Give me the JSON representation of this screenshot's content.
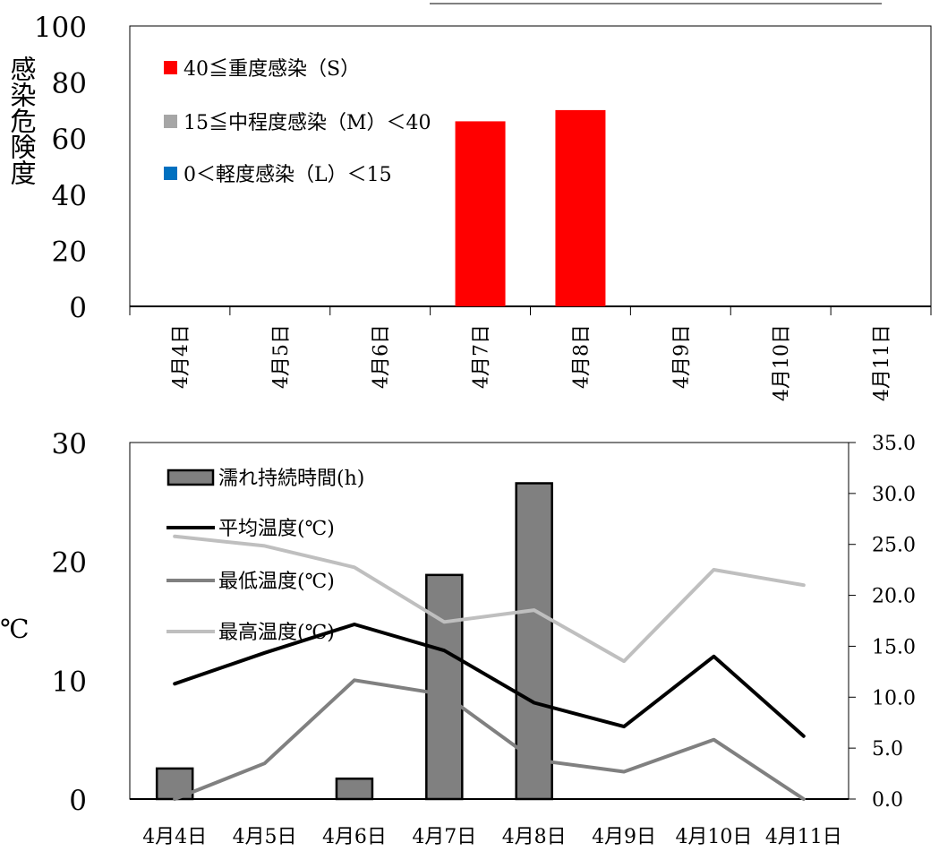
{
  "chart_data": [
    {
      "type": "bar",
      "title": "",
      "ylabel": "感染危険度",
      "ylim": [
        0,
        100
      ],
      "yticks": [
        "0",
        "20",
        "40",
        "60",
        "80",
        "100"
      ],
      "categories": [
        "4月4日",
        "4月5日",
        "4月6日",
        "4月7日",
        "4月8日",
        "4月9日",
        "4月10日",
        "4月11日"
      ],
      "series": [
        {
          "name": "40≦重度感染（S）",
          "color": "#ff0000",
          "values": [
            0,
            0,
            0,
            66,
            70,
            0,
            0,
            0
          ]
        },
        {
          "name": "15≦中程度感染（M）＜40",
          "color": "#a6a6a6",
          "values": [
            0,
            0,
            0,
            0,
            0,
            0,
            0,
            0
          ]
        },
        {
          "name": "0＜軽度感染（L）＜15",
          "color": "#0070c0",
          "values": [
            0,
            0,
            0,
            0,
            0,
            0,
            0,
            0
          ]
        }
      ],
      "legend": "top-left",
      "grid": false
    },
    {
      "type": "bar+line",
      "title": "",
      "ylabel": "℃",
      "ylim": [
        0,
        30
      ],
      "yticks": [
        "0",
        "10",
        "20",
        "30"
      ],
      "y2lim": [
        0,
        35
      ],
      "y2ticks": [
        "0.0",
        "5.0",
        "10.0",
        "15.0",
        "20.0",
        "25.0",
        "30.0",
        "35.0"
      ],
      "categories": [
        "4月4日",
        "4月5日",
        "4月6日",
        "4月7日",
        "4月8日",
        "4月9日",
        "4月10日",
        "4月11日"
      ],
      "series": [
        {
          "name": "濡れ持続時間(h)",
          "type": "bar",
          "axis": "right",
          "color": "#808080",
          "values": [
            3,
            0,
            2,
            22,
            31,
            0,
            0,
            0
          ]
        },
        {
          "name": "平均温度(℃)",
          "type": "line",
          "axis": "left",
          "color": "#000000",
          "values": [
            9.7,
            12.3,
            14.7,
            12.5,
            8.1,
            6.1,
            12.0,
            5.3
          ]
        },
        {
          "name": "最低温度(℃)",
          "type": "line",
          "axis": "left",
          "color": "#808080",
          "values": [
            0,
            3.0,
            10.0,
            8.8,
            3.3,
            2.3,
            5.0,
            0
          ]
        },
        {
          "name": "最高温度(℃)",
          "type": "line",
          "axis": "left",
          "color": "#bfbfbf",
          "values": [
            22.1,
            21.3,
            19.5,
            14.9,
            15.9,
            11.6,
            19.3,
            18.0
          ]
        }
      ],
      "legend": "top-left",
      "grid": false
    }
  ]
}
